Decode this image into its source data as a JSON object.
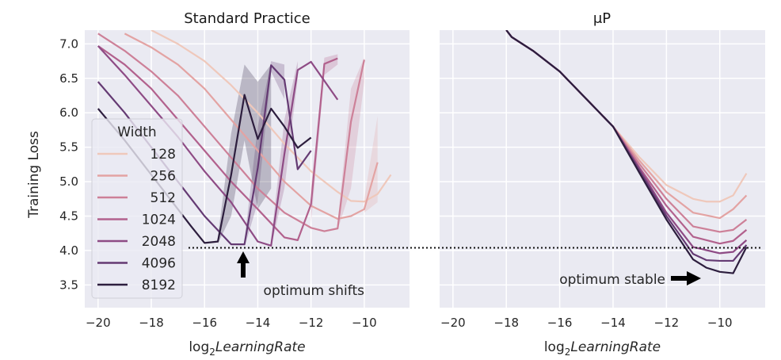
{
  "chart_data": [
    {
      "type": "line",
      "title": "Standard Practice",
      "xlabel_prefix": "log",
      "xlabel_sub": "2",
      "xlabel_italic": "LearningRate",
      "ylabel": "Training Loss",
      "xlim": [
        -20.5,
        -8.3
      ],
      "ylim": [
        3.17,
        7.2
      ],
      "xticks": [
        -20,
        -18,
        -16,
        -14,
        -12,
        -10
      ],
      "xtick_labels": [
        "−20",
        "−18",
        "−16",
        "−14",
        "−12",
        "−10"
      ],
      "yticks": [
        3.5,
        4.0,
        4.5,
        5.0,
        5.5,
        6.0,
        6.5,
        7.0
      ],
      "ytick_labels": [
        "3.5",
        "4.0",
        "4.5",
        "5.0",
        "5.5",
        "6.0",
        "6.5",
        "7.0"
      ],
      "grid": true,
      "legend": {
        "title": "Width",
        "placement": "left"
      },
      "annotation": "optimum shifts",
      "series": [
        {
          "name": "128",
          "color": "#efc8bb",
          "points": [
            [
              -18,
              7.2
            ],
            [
              -17,
              7.0
            ],
            [
              -16,
              6.75
            ],
            [
              -15,
              6.4
            ],
            [
              -14,
              6.0
            ],
            [
              -13,
              5.55
            ],
            [
              -12,
              5.15
            ],
            [
              -11,
              4.85
            ],
            [
              -10.5,
              4.72
            ],
            [
              -10,
              4.71
            ],
            [
              -9.5,
              4.82
            ],
            [
              -9,
              5.1
            ]
          ]
        },
        {
          "name": "256",
          "color": "#e3a3a3",
          "points": [
            [
              -19,
              7.15
            ],
            [
              -18,
              6.95
            ],
            [
              -17,
              6.7
            ],
            [
              -16,
              6.35
            ],
            [
              -15,
              5.9
            ],
            [
              -14,
              5.45
            ],
            [
              -13,
              5.0
            ],
            [
              -12,
              4.65
            ],
            [
              -11,
              4.46
            ],
            [
              -10.5,
              4.5
            ],
            [
              -10,
              4.6
            ],
            [
              -9.5,
              5.28
            ]
          ],
          "band": [
            [
              -10,
              4.55,
              4.75
            ],
            [
              -9.5,
              4.7,
              5.95
            ]
          ]
        },
        {
          "name": "512",
          "color": "#cd8098",
          "points": [
            [
              -20,
              7.15
            ],
            [
              -19,
              6.9
            ],
            [
              -18,
              6.6
            ],
            [
              -17,
              6.25
            ],
            [
              -16,
              5.8
            ],
            [
              -15,
              5.35
            ],
            [
              -14,
              4.9
            ],
            [
              -13,
              4.55
            ],
            [
              -12,
              4.33
            ],
            [
              -11.5,
              4.28
            ],
            [
              -11,
              4.32
            ],
            [
              -10.5,
              5.87
            ],
            [
              -10,
              6.77
            ]
          ],
          "band": [
            [
              -11,
              4.3,
              4.4
            ],
            [
              -10.5,
              4.9,
              6.35
            ],
            [
              -10,
              6.45,
              6.8
            ]
          ]
        },
        {
          "name": "1024",
          "color": "#b2618d",
          "points": [
            [
              -20,
              6.97
            ],
            [
              -19,
              6.7
            ],
            [
              -18,
              6.35
            ],
            [
              -17,
              5.9
            ],
            [
              -16,
              5.45
            ],
            [
              -15,
              5.0
            ],
            [
              -14,
              4.6
            ],
            [
              -13,
              4.19
            ],
            [
              -12.5,
              4.15
            ],
            [
              -12,
              4.67
            ],
            [
              -11.5,
              6.71
            ],
            [
              -11,
              6.79
            ]
          ],
          "band": [
            [
              -12,
              4.4,
              4.9
            ],
            [
              -11.5,
              6.55,
              6.8
            ],
            [
              -11,
              6.7,
              6.85
            ]
          ]
        },
        {
          "name": "2048",
          "color": "#8e4b85",
          "points": [
            [
              -20,
              6.97
            ],
            [
              -19,
              6.55
            ],
            [
              -18,
              6.1
            ],
            [
              -17,
              5.65
            ],
            [
              -16,
              5.15
            ],
            [
              -15,
              4.7
            ],
            [
              -14,
              4.13
            ],
            [
              -13.5,
              4.07
            ],
            [
              -13,
              5.4
            ],
            [
              -12.5,
              6.62
            ],
            [
              -12,
              6.74
            ],
            [
              -11,
              6.19
            ]
          ],
          "band": [
            [
              -13.5,
              4.05,
              4.15
            ],
            [
              -13,
              4.9,
              5.9
            ],
            [
              -12.5,
              6.5,
              6.75
            ]
          ]
        },
        {
          "name": "4096",
          "color": "#643a73",
          "points": [
            [
              -20,
              6.45
            ],
            [
              -19,
              6.0
            ],
            [
              -18,
              5.5
            ],
            [
              -17,
              5.0
            ],
            [
              -16,
              4.5
            ],
            [
              -15,
              4.09
            ],
            [
              -14.5,
              4.09
            ],
            [
              -14,
              5.2
            ],
            [
              -13.5,
              6.69
            ],
            [
              -13,
              6.48
            ],
            [
              -12.5,
              5.18
            ],
            [
              -12,
              5.45
            ]
          ],
          "band": [
            [
              -14.5,
              4.05,
              4.15
            ],
            [
              -14,
              4.7,
              5.8
            ],
            [
              -13.5,
              6.6,
              6.75
            ],
            [
              -13,
              6.2,
              6.7
            ]
          ]
        },
        {
          "name": "8192",
          "color": "#2d1e3e",
          "points": [
            [
              -20,
              6.06
            ],
            [
              -19,
              5.6
            ],
            [
              -18,
              5.1
            ],
            [
              -17,
              4.6
            ],
            [
              -16.5,
              4.35
            ],
            [
              -16,
              4.11
            ],
            [
              -15.5,
              4.13
            ],
            [
              -15,
              5.1
            ],
            [
              -14.5,
              6.26
            ],
            [
              -14,
              5.62
            ],
            [
              -13.5,
              6.06
            ],
            [
              -13,
              5.8
            ],
            [
              -12.5,
              5.49
            ],
            [
              -12,
              5.64
            ]
          ],
          "band": [
            [
              -15.5,
              4.1,
              4.2
            ],
            [
              -15,
              4.5,
              5.7
            ],
            [
              -14.5,
              5.6,
              6.7
            ],
            [
              -14,
              4.6,
              6.45
            ],
            [
              -13.5,
              4.9,
              6.7
            ]
          ]
        }
      ]
    },
    {
      "type": "line",
      "title": "μP",
      "xlabel_prefix": "log",
      "xlabel_sub": "2",
      "xlabel_italic": "LearningRate",
      "xlim": [
        -20.5,
        -8.3
      ],
      "ylim": [
        3.17,
        7.2
      ],
      "xticks": [
        -20,
        -18,
        -16,
        -14,
        -12,
        -10
      ],
      "xtick_labels": [
        "−20",
        "−18",
        "−16",
        "−14",
        "−12",
        "−10"
      ],
      "grid": true,
      "annotation": "optimum stable",
      "reference_line_y": 4.04,
      "series": [
        {
          "name": "128",
          "color": "#efc8bb",
          "points": [
            [
              -18,
              7.2
            ],
            [
              -17.8,
              7.1
            ],
            [
              -17,
              6.9
            ],
            [
              -16,
              6.6
            ],
            [
              -15,
              6.2
            ],
            [
              -14,
              5.8
            ],
            [
              -13,
              5.35
            ],
            [
              -12,
              4.95
            ],
            [
              -11,
              4.75
            ],
            [
              -10.5,
              4.71
            ],
            [
              -10,
              4.71
            ],
            [
              -9.5,
              4.8
            ],
            [
              -9,
              5.12
            ]
          ]
        },
        {
          "name": "256",
          "color": "#e3a3a3",
          "points": [
            [
              -18,
              7.2
            ],
            [
              -17.8,
              7.1
            ],
            [
              -17,
              6.9
            ],
            [
              -16,
              6.6
            ],
            [
              -15,
              6.2
            ],
            [
              -14,
              5.8
            ],
            [
              -13,
              5.3
            ],
            [
              -12,
              4.85
            ],
            [
              -11,
              4.55
            ],
            [
              -10,
              4.47
            ],
            [
              -9.5,
              4.6
            ],
            [
              -9,
              4.8
            ]
          ]
        },
        {
          "name": "512",
          "color": "#cd8098",
          "points": [
            [
              -18,
              7.2
            ],
            [
              -17.8,
              7.1
            ],
            [
              -17,
              6.9
            ],
            [
              -16,
              6.6
            ],
            [
              -15,
              6.2
            ],
            [
              -14,
              5.8
            ],
            [
              -13,
              5.25
            ],
            [
              -12,
              4.75
            ],
            [
              -11,
              4.35
            ],
            [
              -10,
              4.27
            ],
            [
              -9.5,
              4.3
            ],
            [
              -9,
              4.45
            ]
          ]
        },
        {
          "name": "1024",
          "color": "#b2618d",
          "points": [
            [
              -18,
              7.2
            ],
            [
              -17.8,
              7.1
            ],
            [
              -17,
              6.9
            ],
            [
              -16,
              6.6
            ],
            [
              -15,
              6.2
            ],
            [
              -14,
              5.8
            ],
            [
              -13,
              5.2
            ],
            [
              -12,
              4.65
            ],
            [
              -11,
              4.2
            ],
            [
              -10,
              4.1
            ],
            [
              -9.5,
              4.14
            ],
            [
              -9,
              4.3
            ]
          ]
        },
        {
          "name": "2048",
          "color": "#8e4b85",
          "points": [
            [
              -18,
              7.2
            ],
            [
              -17.8,
              7.1
            ],
            [
              -17,
              6.9
            ],
            [
              -16,
              6.6
            ],
            [
              -15,
              6.2
            ],
            [
              -14,
              5.8
            ],
            [
              -13,
              5.18
            ],
            [
              -12,
              4.55
            ],
            [
              -11,
              4.05
            ],
            [
              -10,
              3.96
            ],
            [
              -9.5,
              3.98
            ],
            [
              -9,
              4.15
            ]
          ]
        },
        {
          "name": "4096",
          "color": "#643a73",
          "points": [
            [
              -18,
              7.2
            ],
            [
              -17.8,
              7.1
            ],
            [
              -17,
              6.9
            ],
            [
              -16,
              6.6
            ],
            [
              -15,
              6.2
            ],
            [
              -14,
              5.8
            ],
            [
              -13,
              5.15
            ],
            [
              -12,
              4.5
            ],
            [
              -11,
              3.95
            ],
            [
              -10.5,
              3.86
            ],
            [
              -10,
              3.85
            ],
            [
              -9.5,
              3.85
            ],
            [
              -9,
              4.08
            ]
          ]
        },
        {
          "name": "8192",
          "color": "#2d1e3e",
          "points": [
            [
              -18,
              7.2
            ],
            [
              -17.8,
              7.1
            ],
            [
              -17,
              6.9
            ],
            [
              -16,
              6.6
            ],
            [
              -15,
              6.2
            ],
            [
              -14,
              5.8
            ],
            [
              -13,
              5.12
            ],
            [
              -12,
              4.45
            ],
            [
              -11,
              3.87
            ],
            [
              -10.5,
              3.75
            ],
            [
              -10,
              3.69
            ],
            [
              -9.5,
              3.67
            ],
            [
              -9,
              4.05
            ]
          ]
        }
      ]
    }
  ]
}
